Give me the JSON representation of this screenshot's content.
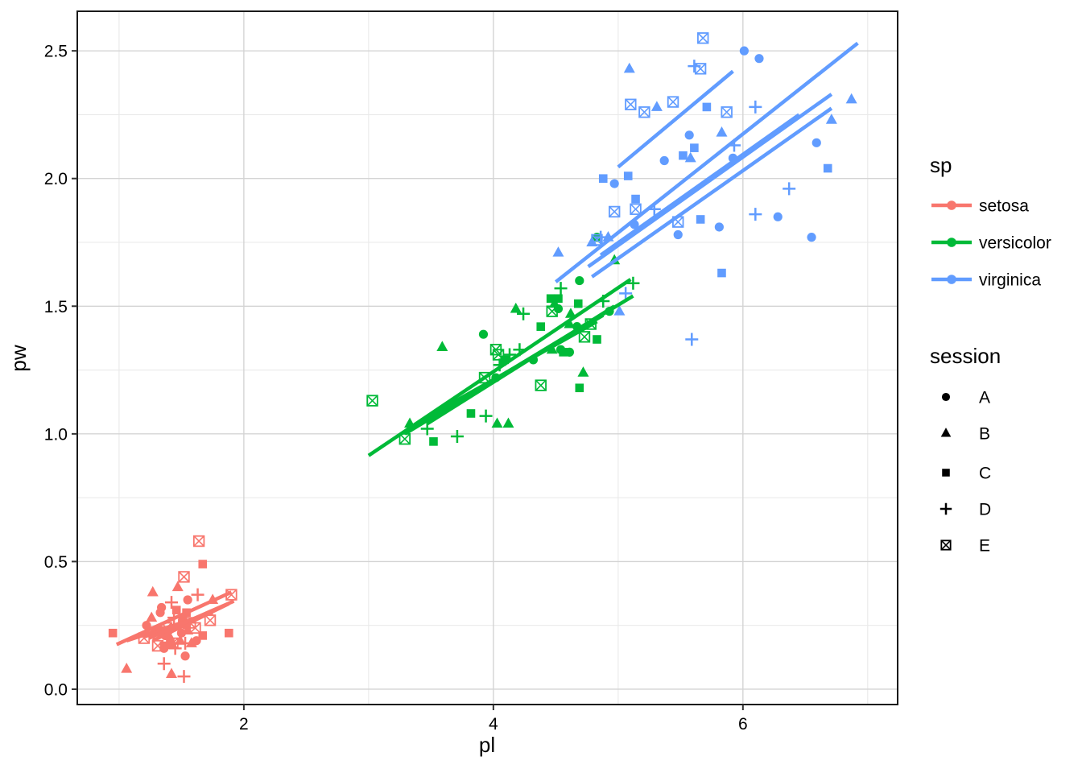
{
  "figure": {
    "background": "#FFFFFF",
    "panel_border_color": "#1A1A1A"
  },
  "legend": {
    "sp": {
      "title": "sp",
      "items": [
        {
          "label": "setosa",
          "color": "#F8766D"
        },
        {
          "label": "versicolor",
          "color": "#00BA38"
        },
        {
          "label": "virginica",
          "color": "#619CFF"
        }
      ]
    },
    "session": {
      "title": "session",
      "color": "#000000",
      "items": [
        {
          "label": "A",
          "shape": "circle"
        },
        {
          "label": "B",
          "shape": "triangle"
        },
        {
          "label": "C",
          "shape": "square"
        },
        {
          "label": "D",
          "shape": "plus"
        },
        {
          "label": "E",
          "shape": "box-x"
        }
      ]
    }
  },
  "chart_data": {
    "type": "scatter",
    "title": "",
    "xlabel": "pl",
    "ylabel": "pw",
    "x_domain": [
      0.665,
      7.24
    ],
    "y_domain": [
      -0.06,
      2.655
    ],
    "x_ticks": {
      "major": [
        2,
        4,
        6
      ],
      "labels": [
        "2",
        "4",
        "6"
      ],
      "minor": [
        1,
        3,
        5,
        7
      ]
    },
    "y_ticks": {
      "major": [
        0,
        0.5,
        1,
        1.5,
        2,
        2.5
      ],
      "labels": [
        "0.0",
        "0.5",
        "1.0",
        "1.5",
        "2.0",
        "2.5"
      ],
      "minor": [
        0.25,
        0.75,
        1.25,
        1.75,
        2.25
      ]
    },
    "grid": {
      "major_color": "#D4D4D4",
      "minor_color": "#E9E9E9"
    },
    "shape_map": {
      "A": "circle",
      "B": "triangle",
      "C": "square",
      "D": "plus",
      "E": "box-x"
    },
    "series": [
      {
        "name": "setosa",
        "color": "#F8766D",
        "points": [
          [
            1.43,
            0.18,
            "E"
          ],
          [
            1.35,
            0.23,
            "C"
          ],
          [
            1.36,
            0.16,
            "A"
          ],
          [
            1.48,
            0.25,
            "D"
          ],
          [
            1.4,
            0.21,
            "B"
          ],
          [
            1.75,
            0.35,
            "B"
          ],
          [
            1.34,
            0.32,
            "A"
          ],
          [
            1.52,
            0.24,
            "E"
          ],
          [
            1.36,
            0.17,
            "C"
          ],
          [
            1.53,
            0.13,
            "A"
          ],
          [
            1.53,
            0.18,
            "D"
          ],
          [
            1.55,
            0.23,
            "B"
          ],
          [
            1.36,
            0.1,
            "D"
          ],
          [
            1.06,
            0.08,
            "B"
          ],
          [
            1.2,
            0.2,
            "E"
          ],
          [
            1.55,
            0.35,
            "A"
          ],
          [
            1.27,
            0.38,
            "B"
          ],
          [
            1.42,
            0.34,
            "D"
          ],
          [
            1.73,
            0.27,
            "E"
          ],
          [
            1.46,
            0.31,
            "C"
          ],
          [
            1.67,
            0.21,
            "C"
          ],
          [
            1.52,
            0.44,
            "E"
          ],
          [
            0.95,
            0.22,
            "C"
          ],
          [
            1.67,
            0.49,
            "C"
          ],
          [
            1.88,
            0.22,
            "C"
          ],
          [
            1.58,
            0.18,
            "B"
          ],
          [
            1.63,
            0.37,
            "D"
          ],
          [
            1.5,
            0.22,
            "A"
          ],
          [
            1.38,
            0.24,
            "E"
          ],
          [
            1.62,
            0.19,
            "A"
          ],
          [
            1.57,
            0.26,
            "E"
          ],
          [
            1.47,
            0.4,
            "B"
          ],
          [
            1.52,
            0.05,
            "D"
          ],
          [
            1.41,
            0.18,
            "C"
          ],
          [
            1.49,
            0.19,
            "B"
          ],
          [
            1.22,
            0.25,
            "A"
          ],
          [
            1.28,
            0.21,
            "D"
          ],
          [
            1.42,
            0.06,
            "B"
          ],
          [
            1.31,
            0.17,
            "E"
          ],
          [
            1.51,
            0.27,
            "C"
          ],
          [
            1.26,
            0.28,
            "B"
          ],
          [
            1.33,
            0.3,
            "A"
          ],
          [
            1.29,
            0.23,
            "C"
          ],
          [
            1.64,
            0.58,
            "E"
          ],
          [
            1.9,
            0.37,
            "E"
          ],
          [
            1.44,
            0.28,
            "D"
          ],
          [
            1.61,
            0.24,
            "E"
          ],
          [
            1.37,
            0.21,
            "A"
          ],
          [
            1.54,
            0.3,
            "C"
          ],
          [
            1.45,
            0.16,
            "D"
          ]
        ],
        "trend_lines": [
          [
            0.98,
            0.175,
            1.9,
            0.38
          ],
          [
            1.27,
            0.19,
            1.88,
            0.335
          ],
          [
            1.06,
            0.19,
            1.75,
            0.3
          ],
          [
            1.2,
            0.205,
            1.67,
            0.285
          ],
          [
            1.24,
            0.2,
            1.92,
            0.345
          ]
        ]
      },
      {
        "name": "versicolor",
        "color": "#00BA38",
        "points": [
          [
            4.73,
            1.38,
            "E"
          ],
          [
            4.46,
            1.53,
            "C"
          ],
          [
            4.93,
            1.48,
            "A"
          ],
          [
            4.05,
            1.27,
            "D"
          ],
          [
            4.62,
            1.47,
            "B"
          ],
          [
            4.47,
            1.33,
            "B"
          ],
          [
            4.69,
            1.6,
            "A"
          ],
          [
            3.29,
            0.98,
            "E"
          ],
          [
            4.56,
            1.32,
            "C"
          ],
          [
            3.92,
            1.39,
            "A"
          ],
          [
            3.52,
            0.97,
            "C"
          ],
          [
            4.24,
            1.47,
            "D"
          ],
          [
            4.03,
            1.04,
            "B"
          ],
          [
            4.67,
            1.42,
            "A"
          ],
          [
            3.59,
            1.34,
            "B"
          ],
          [
            4.38,
            1.42,
            "C"
          ],
          [
            4.52,
            1.53,
            "C"
          ],
          [
            4.12,
            1.04,
            "B"
          ],
          [
            4.47,
            1.48,
            "E"
          ],
          [
            3.94,
            1.07,
            "D"
          ],
          [
            4.83,
            1.77,
            "A"
          ],
          [
            4.02,
            1.33,
            "E"
          ],
          [
            4.88,
            1.52,
            "D"
          ],
          [
            4.72,
            1.24,
            "B"
          ],
          [
            4.54,
            1.33,
            "A"
          ],
          [
            4.83,
            1.37,
            "C"
          ],
          [
            4.78,
            1.43,
            "E"
          ],
          [
            4.97,
            1.68,
            "B"
          ],
          [
            4.52,
            1.49,
            "A"
          ],
          [
            3.47,
            1.02,
            "D"
          ],
          [
            3.82,
            1.08,
            "C"
          ],
          [
            3.71,
            0.99,
            "D"
          ],
          [
            3.93,
            1.22,
            "E"
          ],
          [
            5.12,
            1.59,
            "D"
          ],
          [
            4.49,
            1.51,
            "B"
          ],
          [
            4.54,
            1.57,
            "D"
          ],
          [
            4.68,
            1.51,
            "C"
          ],
          [
            4.61,
            1.32,
            "A"
          ],
          [
            4.09,
            1.29,
            "C"
          ],
          [
            4.04,
            1.31,
            "E"
          ],
          [
            4.38,
            1.19,
            "E"
          ],
          [
            4.61,
            1.43,
            "B"
          ],
          [
            4.02,
            1.22,
            "A"
          ],
          [
            3.33,
            1.04,
            "B"
          ],
          [
            4.21,
            1.33,
            "D"
          ],
          [
            4.69,
            1.18,
            "C"
          ],
          [
            4.18,
            1.49,
            "B"
          ],
          [
            4.32,
            1.29,
            "A"
          ],
          [
            3.03,
            1.13,
            "E"
          ],
          [
            4.13,
            1.31,
            "D"
          ]
        ],
        "trend_lines": [
          [
            3.0,
            0.915,
            5.1,
            1.605
          ],
          [
            3.29,
            1.0,
            5.12,
            1.54
          ],
          [
            3.47,
            1.04,
            4.97,
            1.5
          ],
          [
            3.33,
            1.015,
            4.88,
            1.465
          ],
          [
            3.52,
            1.08,
            4.83,
            1.44
          ]
        ]
      },
      {
        "name": "virginica",
        "color": "#619CFF",
        "points": [
          [
            6.01,
            2.5,
            "A"
          ],
          [
            5.14,
            1.92,
            "C"
          ],
          [
            5.92,
            2.08,
            "A"
          ],
          [
            5.66,
            1.84,
            "C"
          ],
          [
            5.83,
            2.18,
            "B"
          ],
          [
            6.59,
            2.14,
            "A"
          ],
          [
            4.52,
            1.71,
            "B"
          ],
          [
            6.28,
            1.85,
            "A"
          ],
          [
            5.81,
            1.81,
            "A"
          ],
          [
            6.13,
            2.47,
            "A"
          ],
          [
            5.08,
            2.01,
            "C"
          ],
          [
            5.29,
            1.88,
            "D"
          ],
          [
            5.52,
            2.09,
            "C"
          ],
          [
            4.97,
            1.98,
            "A"
          ],
          [
            5.09,
            2.43,
            "B"
          ],
          [
            5.31,
            2.28,
            "B"
          ],
          [
            5.48,
            1.83,
            "E"
          ],
          [
            6.71,
            2.23,
            "B"
          ],
          [
            6.87,
            2.31,
            "B"
          ],
          [
            5.06,
            1.55,
            "D"
          ],
          [
            5.71,
            2.28,
            "C"
          ],
          [
            4.88,
            2.0,
            "C"
          ],
          [
            6.68,
            2.04,
            "C"
          ],
          [
            4.92,
            1.77,
            "B"
          ],
          [
            5.61,
            2.12,
            "C"
          ],
          [
            5.93,
            2.13,
            "D"
          ],
          [
            4.79,
            1.75,
            "B"
          ],
          [
            4.86,
            1.77,
            "D"
          ],
          [
            5.58,
            2.08,
            "B"
          ],
          [
            5.83,
            1.63,
            "C"
          ],
          [
            6.1,
            1.86,
            "D"
          ],
          [
            6.37,
            1.96,
            "D"
          ],
          [
            5.57,
            2.17,
            "A"
          ],
          [
            5.01,
            1.48,
            "B"
          ],
          [
            5.59,
            1.37,
            "D"
          ],
          [
            6.1,
            2.28,
            "D"
          ],
          [
            5.61,
            2.44,
            "D"
          ],
          [
            5.48,
            1.78,
            "A"
          ],
          [
            4.83,
            1.76,
            "E"
          ],
          [
            5.37,
            2.07,
            "A"
          ],
          [
            5.68,
            2.55,
            "E"
          ],
          [
            5.1,
            2.29,
            "E"
          ],
          [
            5.14,
            1.88,
            "E"
          ],
          [
            5.87,
            2.26,
            "E"
          ],
          [
            5.66,
            2.43,
            "E"
          ],
          [
            5.21,
            2.26,
            "E"
          ],
          [
            4.97,
            1.87,
            "E"
          ],
          [
            6.55,
            1.77,
            "A"
          ],
          [
            5.44,
            2.3,
            "E"
          ],
          [
            5.13,
            1.82,
            "A"
          ]
        ],
        "trend_lines": [
          [
            4.5,
            1.595,
            6.92,
            2.53
          ],
          [
            5.0,
            2.045,
            5.92,
            2.42
          ],
          [
            4.76,
            1.655,
            6.71,
            2.33
          ],
          [
            4.79,
            1.615,
            6.71,
            2.275
          ],
          [
            4.86,
            1.7,
            6.45,
            2.25
          ]
        ]
      }
    ]
  }
}
